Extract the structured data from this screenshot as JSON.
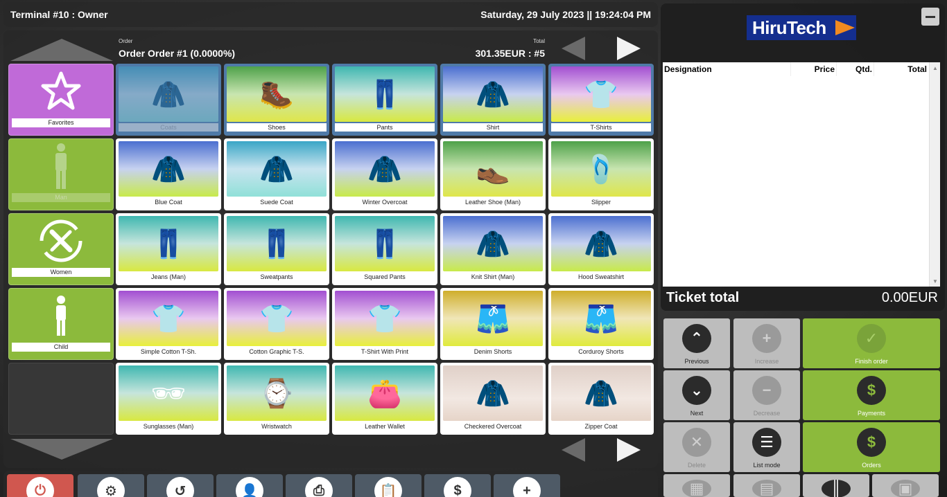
{
  "topbar": {
    "terminal": "Terminal #10 : Owner",
    "datetime": "Saturday, 29 July 2023 || 19:24:04 PM"
  },
  "order": {
    "order_small": "Order",
    "order_name": "Order Order #1 (0.0000%)",
    "total_small": "Total",
    "total_value": "301.35EUR : #5"
  },
  "categories": [
    {
      "label": "Favorites",
      "icon": "star-icon",
      "color": "#c06ad8"
    },
    {
      "label": "Man",
      "icon": "man-icon",
      "color": "#8cba3c"
    },
    {
      "label": "Women",
      "icon": "tools-icon",
      "color": "#8cba3c"
    },
    {
      "label": "Child",
      "icon": "child-icon",
      "color": "#8cba3c"
    }
  ],
  "products": [
    {
      "label": "Coats",
      "icon": "coat-icon"
    },
    {
      "label": "Shoes",
      "icon": "boot-icon"
    },
    {
      "label": "Pants",
      "icon": "pants-icon"
    },
    {
      "label": "Shirt",
      "icon": "hoodie-icon"
    },
    {
      "label": "T-Shirts",
      "icon": "tshirt-icon"
    },
    {
      "label": "Blue Coat",
      "icon": "jacket-icon"
    },
    {
      "label": "Suede Coat",
      "icon": "jacket-icon"
    },
    {
      "label": "Winter Overcoat",
      "icon": "coat-icon"
    },
    {
      "label": "Leather Shoe (Man)",
      "icon": "shoe-icon"
    },
    {
      "label": "Slipper",
      "icon": "slipper-icon"
    },
    {
      "label": "Jeans (Man)",
      "icon": "jeans-icon"
    },
    {
      "label": "Sweatpants",
      "icon": "pants-icon"
    },
    {
      "label": "Squared Pants",
      "icon": "pants-icon"
    },
    {
      "label": "Knit Shirt (Man)",
      "icon": "sweater-icon"
    },
    {
      "label": "Hood Sweatshirt",
      "icon": "hoodie-icon"
    },
    {
      "label": "Simple Cotton T-Sh.",
      "icon": "tshirt-icon"
    },
    {
      "label": "Cotton Graphic T-S.",
      "icon": "tshirt-icon"
    },
    {
      "label": "T-Shirt With Print",
      "icon": "tshirt-icon"
    },
    {
      "label": "Denim Shorts",
      "icon": "shorts-icon"
    },
    {
      "label": "Corduroy Shorts",
      "icon": "shorts-icon"
    },
    {
      "label": "Sunglasses (Man)",
      "icon": "sunglasses-icon"
    },
    {
      "label": "Wristwatch",
      "icon": "watch-icon"
    },
    {
      "label": "Leather Wallet",
      "icon": "wallet-icon"
    },
    {
      "label": "Checkered Overcoat",
      "icon": "coat-icon"
    },
    {
      "label": "Zipper Coat",
      "icon": "coat-icon"
    }
  ],
  "logo": "HiruTech",
  "ticket": {
    "col_designation": "Designation",
    "col_price": "Price",
    "col_qty": "Qtd.",
    "col_total": "Total",
    "total_label": "Ticket total",
    "total_value": "0.00EUR"
  },
  "actions": {
    "previous": "Previous",
    "increase": "Increase",
    "finish_order": "Finish order",
    "next": "Next",
    "decrease": "Decrease",
    "payments": "Payments",
    "delete": "Delete",
    "list_mode": "List mode",
    "orders": "Orders"
  },
  "colors": {
    "accent_green": "#8cba3c",
    "favorites_purple": "#c06ad8",
    "power_red": "#d0574f",
    "logo_blue": "#142e8e",
    "logo_orange": "#f08a20"
  }
}
